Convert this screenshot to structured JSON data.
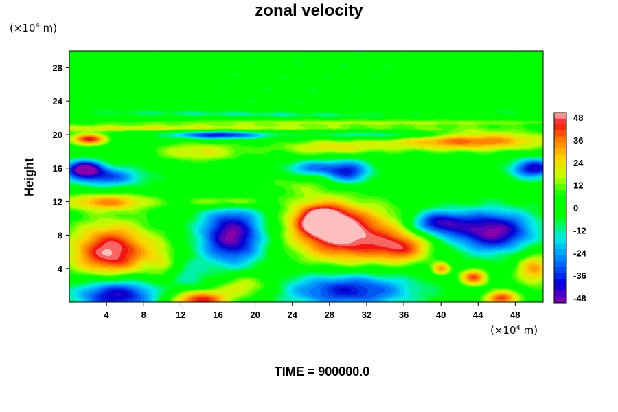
{
  "chart_data": {
    "type": "heatmap",
    "title": "zonal velocity",
    "ylabel": "Height",
    "xlabel": "",
    "x_unit_prefix": "(×10",
    "x_unit_exp": "4",
    "x_unit_suffix": " m)",
    "y_unit_prefix": "(×10",
    "y_unit_exp": "4",
    "y_unit_suffix": " m)",
    "xlim": [
      0,
      51
    ],
    "ylim": [
      0,
      30
    ],
    "x_ticks": [
      4,
      8,
      12,
      16,
      20,
      24,
      28,
      32,
      36,
      40,
      44,
      48
    ],
    "y_ticks": [
      4,
      8,
      12,
      16,
      20,
      24,
      28
    ],
    "colorbar": {
      "range": [
        -48,
        48
      ],
      "tick_labels": [
        "48",
        "36",
        "24",
        "12",
        "0",
        "-12",
        "-24",
        "-36",
        "-48"
      ],
      "colormap": "rainbow (purple-blue-cyan-green-yellow-orange-red-pink)"
    },
    "features": [
      {
        "x": 4.5,
        "y": 6,
        "value": 48,
        "sx": 4.5,
        "sy": 3.5
      },
      {
        "x": 30,
        "y": 8,
        "value": 48,
        "sx": 6,
        "sy": 3.5
      },
      {
        "x": 27,
        "y": 10,
        "value": 40,
        "sx": 3,
        "sy": 2
      },
      {
        "x": 36,
        "y": 6.5,
        "value": 28,
        "sx": 3,
        "sy": 1.8
      },
      {
        "x": 17.5,
        "y": 8,
        "value": -48,
        "sx": 3.5,
        "sy": 3.5
      },
      {
        "x": 45.5,
        "y": 8.5,
        "value": -48,
        "sx": 4.5,
        "sy": 2.5
      },
      {
        "x": 39.5,
        "y": 9.5,
        "value": -38,
        "sx": 3,
        "sy": 1.5
      },
      {
        "x": 5,
        "y": 1,
        "value": -46,
        "sx": 4.5,
        "sy": 2.2
      },
      {
        "x": 30,
        "y": 1.5,
        "value": -38,
        "sx": 7,
        "sy": 2.2
      },
      {
        "x": 14,
        "y": 0.3,
        "value": 45,
        "sx": 3,
        "sy": 1.2
      },
      {
        "x": 19,
        "y": 2,
        "value": 22,
        "sx": 3,
        "sy": 1.5
      },
      {
        "x": 43.5,
        "y": 3,
        "value": 38,
        "sx": 1.5,
        "sy": 1
      },
      {
        "x": 46.5,
        "y": 0.5,
        "value": 40,
        "sx": 1.8,
        "sy": 0.9
      },
      {
        "x": 50,
        "y": 4,
        "value": 30,
        "sx": 2,
        "sy": 2
      },
      {
        "x": 40,
        "y": 4,
        "value": 30,
        "sx": 1,
        "sy": 0.8
      },
      {
        "x": 2,
        "y": 19.5,
        "value": 42,
        "sx": 2,
        "sy": 0.7
      },
      {
        "x": 43,
        "y": 19.3,
        "value": 36,
        "sx": 9,
        "sy": 1.2
      },
      {
        "x": 4,
        "y": 12,
        "value": 30,
        "sx": 5,
        "sy": 1
      },
      {
        "x": 17,
        "y": 12,
        "value": 24,
        "sx": 4,
        "sy": 0.8
      },
      {
        "x": 1.5,
        "y": 16,
        "value": -45,
        "sx": 2,
        "sy": 1
      },
      {
        "x": 4,
        "y": 15,
        "value": -30,
        "sx": 4,
        "sy": 1.2
      },
      {
        "x": 50,
        "y": 16,
        "value": -40,
        "sx": 2.5,
        "sy": 1.2
      },
      {
        "x": 30,
        "y": 15.5,
        "value": -35,
        "sx": 2.5,
        "sy": 1.5
      },
      {
        "x": 26,
        "y": 16,
        "value": -25,
        "sx": 3,
        "sy": 1
      },
      {
        "x": 16,
        "y": 20,
        "value": -38,
        "sx": 5,
        "sy": 0.5
      },
      {
        "x": 34,
        "y": 20,
        "value": -20,
        "sx": 8,
        "sy": 0.5
      },
      {
        "x": 14,
        "y": 18,
        "value": 20,
        "sx": 5,
        "sy": 1.2
      },
      {
        "x": 28,
        "y": 18.5,
        "value": 20,
        "sx": 6,
        "sy": 1
      },
      {
        "x": 10,
        "y": 20.8,
        "value": 20,
        "sx": 25,
        "sy": 0.4
      },
      {
        "x": 30,
        "y": 21.5,
        "value": 14,
        "sx": 30,
        "sy": 0.4
      },
      {
        "x": 20,
        "y": 22.5,
        "value": -8,
        "sx": 30,
        "sy": 0.4
      },
      {
        "x": 25,
        "y": 14,
        "value": 10,
        "sx": 6,
        "sy": 1.5
      },
      {
        "x": 10,
        "y": 5,
        "value": 10,
        "sx": 1.5,
        "sy": 2.5
      },
      {
        "x": 13,
        "y": 3,
        "value": -12,
        "sx": 2,
        "sy": 2
      }
    ]
  },
  "footer": {
    "time_label": "TIME = 900000.0"
  },
  "colors": {
    "background": "#ffffff",
    "field_background": "#00ff00"
  }
}
